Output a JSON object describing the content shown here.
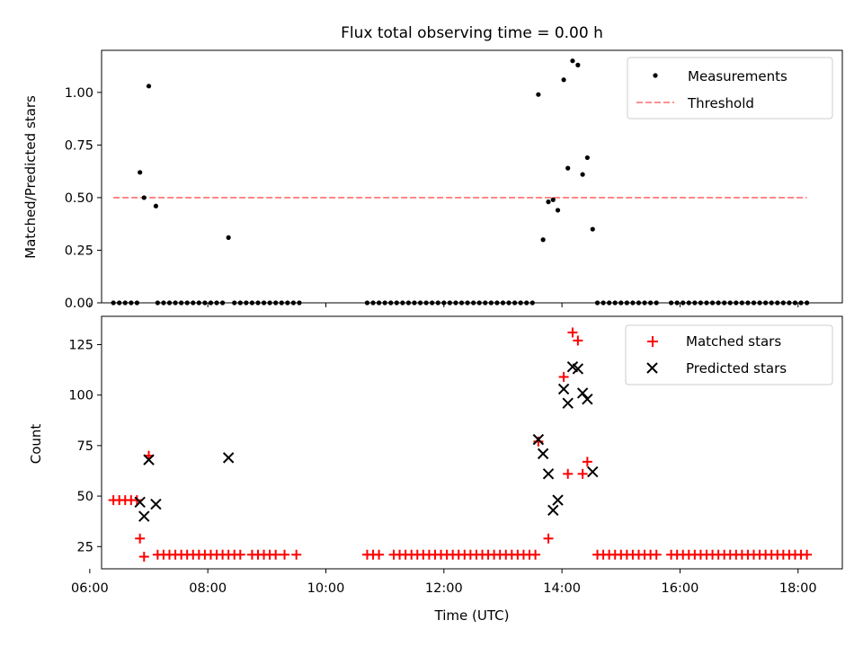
{
  "chart_data": [
    {
      "type": "scatter",
      "title": "Flux total observing time = 0.00 h",
      "xlabel": "",
      "ylabel": "Matched/Predicted stars",
      "xlim": [
        6.2,
        18.75
      ],
      "ylim": [
        0,
        1.2
      ],
      "yticks": [
        0.0,
        0.25,
        0.5,
        0.75,
        1.0
      ],
      "ytick_labels": [
        "0.00",
        "0.25",
        "0.50",
        "0.75",
        "1.00"
      ],
      "legend": {
        "position": "top-right",
        "entries": [
          "Measurements",
          "Threshold"
        ]
      },
      "threshold": {
        "name": "Threshold",
        "value": 0.5,
        "x_range": [
          6.4,
          18.15
        ],
        "color": "#ff8080"
      },
      "series": [
        {
          "name": "Measurements",
          "color": "#000000",
          "points": [
            [
              6.85,
              0.62
            ],
            [
              6.92,
              0.5
            ],
            [
              7.0,
              1.03
            ],
            [
              7.12,
              0.46
            ],
            [
              8.35,
              0.31
            ],
            [
              13.6,
              0.99
            ],
            [
              13.68,
              0.3
            ],
            [
              13.77,
              0.48
            ],
            [
              13.85,
              0.49
            ],
            [
              13.93,
              0.44
            ],
            [
              14.03,
              1.06
            ],
            [
              14.1,
              0.64
            ],
            [
              14.18,
              1.15
            ],
            [
              14.27,
              1.13
            ],
            [
              14.35,
              0.61
            ],
            [
              14.43,
              0.69
            ],
            [
              14.52,
              0.35
            ]
          ],
          "zero_points": [
            6.4,
            6.5,
            6.6,
            6.7,
            6.8,
            7.15,
            7.25,
            7.35,
            7.45,
            7.55,
            7.65,
            7.75,
            7.85,
            7.95,
            8.05,
            8.15,
            8.25,
            8.45,
            8.55,
            8.65,
            8.75,
            8.85,
            8.95,
            9.05,
            9.15,
            9.25,
            9.35,
            9.45,
            9.55,
            10.7,
            10.8,
            10.9,
            11.0,
            11.1,
            11.2,
            11.3,
            11.4,
            11.5,
            11.6,
            11.7,
            11.8,
            11.9,
            12.0,
            12.1,
            12.2,
            12.3,
            12.4,
            12.5,
            12.6,
            12.7,
            12.8,
            12.9,
            13.0,
            13.1,
            13.2,
            13.3,
            13.4,
            13.5,
            14.6,
            14.7,
            14.8,
            14.9,
            15.0,
            15.1,
            15.2,
            15.3,
            15.4,
            15.5,
            15.6,
            15.85,
            15.95,
            16.05,
            16.15,
            16.25,
            16.35,
            16.45,
            16.55,
            16.65,
            16.75,
            16.85,
            16.95,
            17.05,
            17.15,
            17.25,
            17.35,
            17.45,
            17.55,
            17.65,
            17.75,
            17.85,
            17.95,
            18.05,
            18.15
          ]
        }
      ]
    },
    {
      "type": "scatter",
      "title": "",
      "xlabel": "Time (UTC)",
      "ylabel": "Count",
      "xlim": [
        6.2,
        18.75
      ],
      "ylim": [
        14,
        139
      ],
      "xticks": [
        6,
        8,
        10,
        12,
        14,
        16,
        18
      ],
      "xtick_labels": [
        "06:00",
        "08:00",
        "10:00",
        "12:00",
        "14:00",
        "16:00",
        "18:00"
      ],
      "yticks": [
        25,
        50,
        75,
        100,
        125
      ],
      "ytick_labels": [
        "25",
        "50",
        "75",
        "100",
        "125"
      ],
      "legend": {
        "position": "top-right",
        "entries": [
          "Matched stars",
          "Predicted stars"
        ]
      },
      "series": [
        {
          "name": "Matched stars",
          "marker": "plus",
          "color": "#ff0000",
          "points": [
            [
              6.4,
              48
            ],
            [
              6.5,
              48
            ],
            [
              6.6,
              48
            ],
            [
              6.7,
              48
            ],
            [
              6.8,
              48
            ],
            [
              6.85,
              29
            ],
            [
              6.92,
              20
            ],
            [
              7.0,
              70
            ],
            [
              7.15,
              21
            ],
            [
              7.25,
              21
            ],
            [
              7.35,
              21
            ],
            [
              7.45,
              21
            ],
            [
              7.55,
              21
            ],
            [
              7.65,
              21
            ],
            [
              7.75,
              21
            ],
            [
              7.85,
              21
            ],
            [
              7.95,
              21
            ],
            [
              8.05,
              21
            ],
            [
              8.15,
              21
            ],
            [
              8.25,
              21
            ],
            [
              8.35,
              21
            ],
            [
              8.45,
              21
            ],
            [
              8.55,
              21
            ],
            [
              8.75,
              21
            ],
            [
              8.85,
              21
            ],
            [
              8.95,
              21
            ],
            [
              9.05,
              21
            ],
            [
              9.15,
              21
            ],
            [
              9.3,
              21
            ],
            [
              9.5,
              21
            ],
            [
              10.7,
              21
            ],
            [
              10.8,
              21
            ],
            [
              10.9,
              21
            ],
            [
              11.15,
              21
            ],
            [
              11.25,
              21
            ],
            [
              11.35,
              21
            ],
            [
              11.45,
              21
            ],
            [
              11.55,
              21
            ],
            [
              11.65,
              21
            ],
            [
              11.75,
              21
            ],
            [
              11.85,
              21
            ],
            [
              11.95,
              21
            ],
            [
              12.05,
              21
            ],
            [
              12.15,
              21
            ],
            [
              12.25,
              21
            ],
            [
              12.35,
              21
            ],
            [
              12.45,
              21
            ],
            [
              12.55,
              21
            ],
            [
              12.65,
              21
            ],
            [
              12.75,
              21
            ],
            [
              12.85,
              21
            ],
            [
              12.95,
              21
            ],
            [
              13.05,
              21
            ],
            [
              13.15,
              21
            ],
            [
              13.25,
              21
            ],
            [
              13.35,
              21
            ],
            [
              13.45,
              21
            ],
            [
              13.55,
              21
            ],
            [
              13.6,
              77
            ],
            [
              13.77,
              29
            ],
            [
              14.03,
              109
            ],
            [
              14.1,
              61
            ],
            [
              14.18,
              131
            ],
            [
              14.27,
              127
            ],
            [
              14.35,
              61
            ],
            [
              14.43,
              67
            ],
            [
              14.6,
              21
            ],
            [
              14.7,
              21
            ],
            [
              14.8,
              21
            ],
            [
              14.9,
              21
            ],
            [
              15.0,
              21
            ],
            [
              15.1,
              21
            ],
            [
              15.2,
              21
            ],
            [
              15.3,
              21
            ],
            [
              15.4,
              21
            ],
            [
              15.5,
              21
            ],
            [
              15.6,
              21
            ],
            [
              15.85,
              21
            ],
            [
              15.95,
              21
            ],
            [
              16.05,
              21
            ],
            [
              16.15,
              21
            ],
            [
              16.25,
              21
            ],
            [
              16.35,
              21
            ],
            [
              16.45,
              21
            ],
            [
              16.55,
              21
            ],
            [
              16.65,
              21
            ],
            [
              16.75,
              21
            ],
            [
              16.85,
              21
            ],
            [
              16.95,
              21
            ],
            [
              17.05,
              21
            ],
            [
              17.15,
              21
            ],
            [
              17.25,
              21
            ],
            [
              17.35,
              21
            ],
            [
              17.45,
              21
            ],
            [
              17.55,
              21
            ],
            [
              17.65,
              21
            ],
            [
              17.75,
              21
            ],
            [
              17.85,
              21
            ],
            [
              17.95,
              21
            ],
            [
              18.05,
              21
            ],
            [
              18.15,
              21
            ]
          ]
        },
        {
          "name": "Predicted stars",
          "marker": "x",
          "color": "#000000",
          "points": [
            [
              6.85,
              47
            ],
            [
              6.92,
              40
            ],
            [
              7.0,
              68
            ],
            [
              7.12,
              46
            ],
            [
              8.35,
              69
            ],
            [
              13.6,
              78
            ],
            [
              13.68,
              71
            ],
            [
              13.77,
              61
            ],
            [
              13.85,
              43
            ],
            [
              13.93,
              48
            ],
            [
              14.03,
              103
            ],
            [
              14.1,
              96
            ],
            [
              14.18,
              114
            ],
            [
              14.27,
              113
            ],
            [
              14.35,
              101
            ],
            [
              14.43,
              98
            ],
            [
              14.52,
              62
            ]
          ]
        }
      ]
    }
  ]
}
